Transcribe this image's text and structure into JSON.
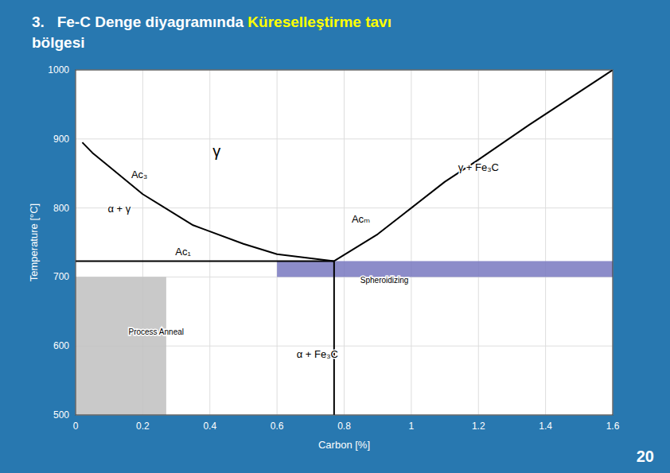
{
  "background_color": "#2878b0",
  "page_number": "20",
  "chart_data": {
    "type": "line",
    "title": [
      [
        {
          "text": "3.   Fe-C Denge diyagramında ",
          "color": "white"
        },
        {
          "text": "Küreselleştirme tavı",
          "color": "yellow"
        }
      ],
      [
        {
          "text": "bölgesi",
          "color": "white"
        }
      ]
    ],
    "xlabel": "Carbon [%]",
    "ylabel": "Temperature [°C]",
    "xlim": [
      0,
      1.6
    ],
    "ylim": [
      500,
      1000
    ],
    "xticks": [
      0,
      0.2,
      0.4,
      0.6,
      0.8,
      1,
      1.2,
      1.4,
      1.6
    ],
    "yticks": [
      500,
      600,
      700,
      800,
      900,
      1000
    ],
    "grid": true,
    "series": [
      {
        "color": "black",
        "x": [
          0.02,
          0.05,
          0.1,
          0.2,
          0.35,
          0.5,
          0.6,
          0.77
        ],
        "values": [
          895,
          880,
          860,
          820,
          775,
          748,
          733,
          723
        ]
      },
      {
        "color": "black",
        "x": [
          0.0,
          0.77
        ],
        "values": [
          723,
          723
        ]
      },
      {
        "color": "black",
        "x": [
          0.77,
          0.9,
          1.0,
          1.1,
          1.2,
          1.35,
          1.6
        ],
        "values": [
          723,
          762,
          800,
          838,
          870,
          920,
          1000
        ]
      },
      {
        "color": "black",
        "x": [
          0.77,
          0.77
        ],
        "values": [
          500,
          723
        ]
      }
    ],
    "regions": [
      {
        "label": "Process Anneal",
        "x": [
          0.0,
          0.27
        ],
        "y": [
          500,
          700
        ],
        "color": "#c0c0c0",
        "label_x": 0.24,
        "label_y": 620
      },
      {
        "label": "Spheroidizing",
        "x": [
          0.6,
          1.6
        ],
        "y": [
          700,
          723
        ],
        "color": "#7878c0",
        "label_x": 0.92,
        "label_y": 695
      }
    ],
    "annotations": [
      {
        "text": "Ac₃",
        "x": 0.19,
        "y": 840
      },
      {
        "text": "Ac₁",
        "x": 0.32,
        "y": 728
      },
      {
        "text": "Acₘ",
        "x": 0.85,
        "y": 775
      },
      {
        "text": "γ",
        "x": 0.42,
        "y": 870
      },
      {
        "text": "γ + Fe₃C",
        "x": 1.2,
        "y": 850
      },
      {
        "text": "α + γ",
        "x": 0.13,
        "y": 790
      },
      {
        "text": "α + Fe₃C",
        "x": 0.72,
        "y": 580
      }
    ]
  }
}
